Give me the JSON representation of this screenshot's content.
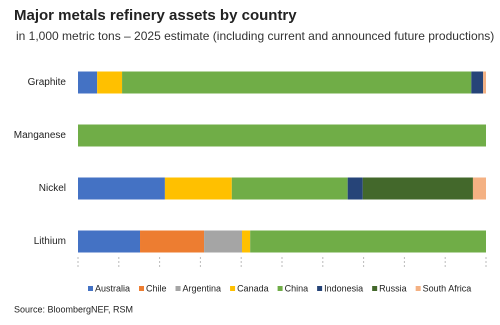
{
  "chart_data": {
    "type": "stacked-bar-horizontal",
    "title": "Major metals refinery assets by country",
    "subtitle": "in 1,000 metric tons – 2025 estimate (including current and announced future productions)",
    "source": "Source: BloombergNEF, RSM",
    "categories": [
      "Graphite",
      "Manganese",
      "Nickel",
      "Lithium"
    ],
    "xlim": [
      0,
      100
    ],
    "xticks": [
      0,
      10,
      20,
      30,
      40,
      50,
      60,
      70,
      80,
      90,
      100
    ],
    "series": [
      {
        "name": "Australia",
        "color": "#4472c4",
        "values": [
          4.7,
          0,
          21.3,
          15.2
        ]
      },
      {
        "name": "Chile",
        "color": "#ed7d31",
        "values": [
          0,
          0,
          0,
          15.7
        ]
      },
      {
        "name": "Argentina",
        "color": "#a5a5a5",
        "values": [
          0,
          0,
          0,
          9.3
        ]
      },
      {
        "name": "Canada",
        "color": "#ffc000",
        "values": [
          6.1,
          0,
          16.4,
          2.0
        ]
      },
      {
        "name": "China",
        "color": "#70ad47",
        "values": [
          85.6,
          100,
          28.4,
          57.8
        ]
      },
      {
        "name": "Indonesia",
        "color": "#264478",
        "values": [
          2.9,
          0,
          3.7,
          0
        ]
      },
      {
        "name": "Russia",
        "color": "#43682b",
        "values": [
          0,
          0,
          27.0,
          0
        ]
      },
      {
        "name": "South Africa",
        "color": "#f4b183",
        "values": [
          0.7,
          0,
          3.2,
          0
        ]
      }
    ]
  }
}
